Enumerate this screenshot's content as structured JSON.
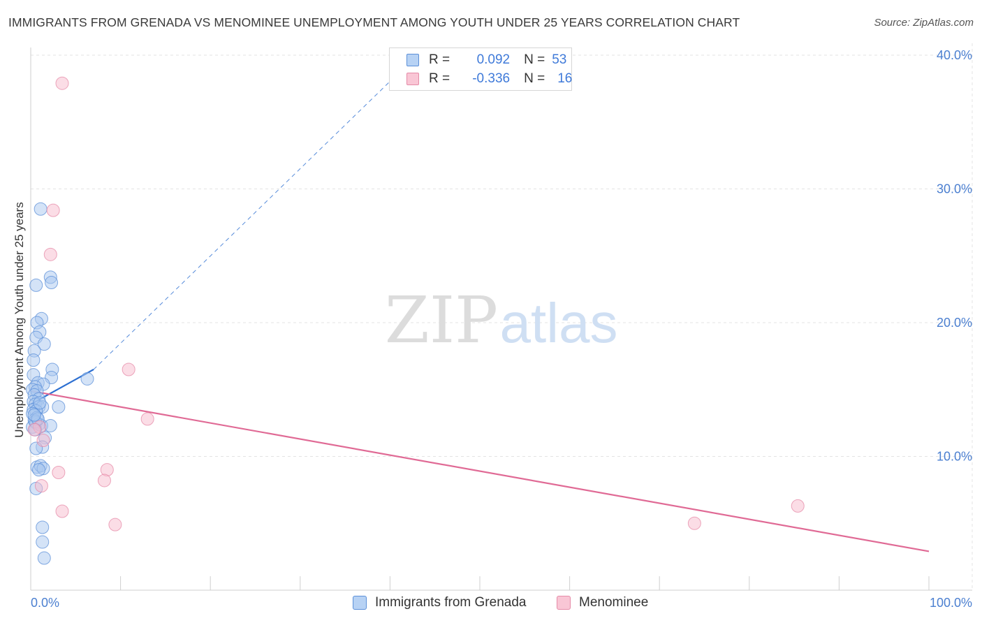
{
  "header": {
    "title": "IMMIGRANTS FROM GRENADA VS MENOMINEE UNEMPLOYMENT AMONG YOUTH UNDER 25 YEARS CORRELATION CHART",
    "source": "Source: ZipAtlas.com"
  },
  "watermark": {
    "zip": "ZIP",
    "atlas": "atlas"
  },
  "legend": {
    "rows": [
      {
        "r_label": "R =",
        "r_value": "0.092",
        "n_label": "N =",
        "n_value": "53"
      },
      {
        "r_label": "R =",
        "r_value": "-0.336",
        "n_label": "N =",
        "n_value": "16"
      }
    ]
  },
  "bottom_legend": {
    "items": [
      {
        "label": "Immigrants from Grenada"
      },
      {
        "label": "Menominee"
      }
    ]
  },
  "chart_data": {
    "type": "scatter",
    "title": "IMMIGRANTS FROM GRENADA VS MENOMINEE UNEMPLOYMENT AMONG YOUTH UNDER 25 YEARS CORRELATION CHART",
    "xlabel": "",
    "ylabel": "Unemployment Among Youth under 25 years",
    "xlim": [
      0,
      100
    ],
    "ylim": [
      0,
      40
    ],
    "x_tick_labels": [
      "0.0%",
      "100.0%"
    ],
    "y_ticks": [
      10,
      20,
      30,
      40
    ],
    "y_tick_labels": [
      "10.0%",
      "20.0%",
      "30.0%",
      "40.0%"
    ],
    "grid": true,
    "colors": {
      "grenada_fill": "#a9c8f0",
      "grenada_stroke": "#5b8fd8",
      "grenada_line": "#2c6fd1",
      "menominee_fill": "#f7bccd",
      "menominee_stroke": "#e58aa7",
      "menominee_line": "#e06a95",
      "tick_label": "#4b7fd0",
      "grid": "#e3e3e3"
    },
    "series": [
      {
        "name": "Immigrants from Grenada",
        "r": 0.092,
        "n": 53,
        "points": [
          [
            1.1,
            28.5
          ],
          [
            2.2,
            23.4
          ],
          [
            2.3,
            23.0
          ],
          [
            0.6,
            22.8
          ],
          [
            1.2,
            20.3
          ],
          [
            0.7,
            20.0
          ],
          [
            1.0,
            19.3
          ],
          [
            0.6,
            18.9
          ],
          [
            1.5,
            18.4
          ],
          [
            0.4,
            17.9
          ],
          [
            0.3,
            17.2
          ],
          [
            2.4,
            16.5
          ],
          [
            0.3,
            16.1
          ],
          [
            2.3,
            15.9
          ],
          [
            6.3,
            15.8
          ],
          [
            0.8,
            15.5
          ],
          [
            1.4,
            15.4
          ],
          [
            0.5,
            15.2
          ],
          [
            0.2,
            15.0
          ],
          [
            0.7,
            14.9
          ],
          [
            0.4,
            14.6
          ],
          [
            0.9,
            14.3
          ],
          [
            0.3,
            14.1
          ],
          [
            0.5,
            13.9
          ],
          [
            0.9,
            13.7
          ],
          [
            1.3,
            13.7
          ],
          [
            3.1,
            13.7
          ],
          [
            0.3,
            13.5
          ],
          [
            0.6,
            13.4
          ],
          [
            0.2,
            13.2
          ],
          [
            0.7,
            12.9
          ],
          [
            0.4,
            12.7
          ],
          [
            0.6,
            12.5
          ],
          [
            0.9,
            12.4
          ],
          [
            0.2,
            12.2
          ],
          [
            1.2,
            12.3
          ],
          [
            2.2,
            12.3
          ],
          [
            0.5,
            12.6
          ],
          [
            0.8,
            12.8
          ],
          [
            1.6,
            11.4
          ],
          [
            1.3,
            10.7
          ],
          [
            0.6,
            10.6
          ],
          [
            0.7,
            9.2
          ],
          [
            1.1,
            9.3
          ],
          [
            1.4,
            9.1
          ],
          [
            0.9,
            9.0
          ],
          [
            0.6,
            7.6
          ],
          [
            1.3,
            4.7
          ],
          [
            1.3,
            3.6
          ],
          [
            1.5,
            2.4
          ],
          [
            0.4,
            13.1
          ],
          [
            1.0,
            14.0
          ],
          [
            0.5,
            12.0
          ]
        ]
      },
      {
        "name": "Menominee",
        "r": -0.336,
        "n": 16,
        "points": [
          [
            3.5,
            37.9
          ],
          [
            2.5,
            28.4
          ],
          [
            2.2,
            25.1
          ],
          [
            10.9,
            16.5
          ],
          [
            13.0,
            12.8
          ],
          [
            1.0,
            12.2
          ],
          [
            1.4,
            11.2
          ],
          [
            8.5,
            9.0
          ],
          [
            8.2,
            8.2
          ],
          [
            3.1,
            8.8
          ],
          [
            1.2,
            7.8
          ],
          [
            3.5,
            5.9
          ],
          [
            9.4,
            4.9
          ],
          [
            73.9,
            5.0
          ],
          [
            85.4,
            6.3
          ],
          [
            0.4,
            12.0
          ]
        ]
      }
    ],
    "trend_lines": [
      {
        "series": "Immigrants from Grenada",
        "style": "solid",
        "from": [
          0,
          13.9
        ],
        "to": [
          7.0,
          16.5
        ]
      },
      {
        "series": "Immigrants from Grenada",
        "style": "dashed",
        "from": [
          7.0,
          16.5
        ],
        "to": [
          43.0,
          40.0
        ]
      },
      {
        "series": "Menominee",
        "style": "solid",
        "from": [
          0,
          14.9
        ],
        "to": [
          100,
          2.9
        ]
      }
    ]
  }
}
